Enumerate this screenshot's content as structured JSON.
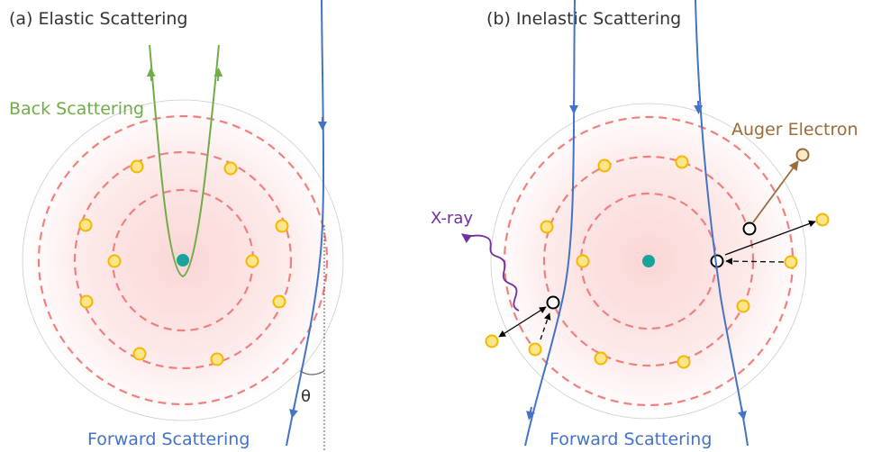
{
  "panel_a": {
    "title": "(a)  Elastic Scattering",
    "back_scattering": "Back Scattering",
    "forward_scattering": "Forward Scattering",
    "angle": "θ"
  },
  "panel_b": {
    "title": "(b)  Inelastic Scattering",
    "x_ray": "X-ray",
    "auger_electron": "Auger Electron",
    "forward_scattering": "Forward Scattering"
  }
}
